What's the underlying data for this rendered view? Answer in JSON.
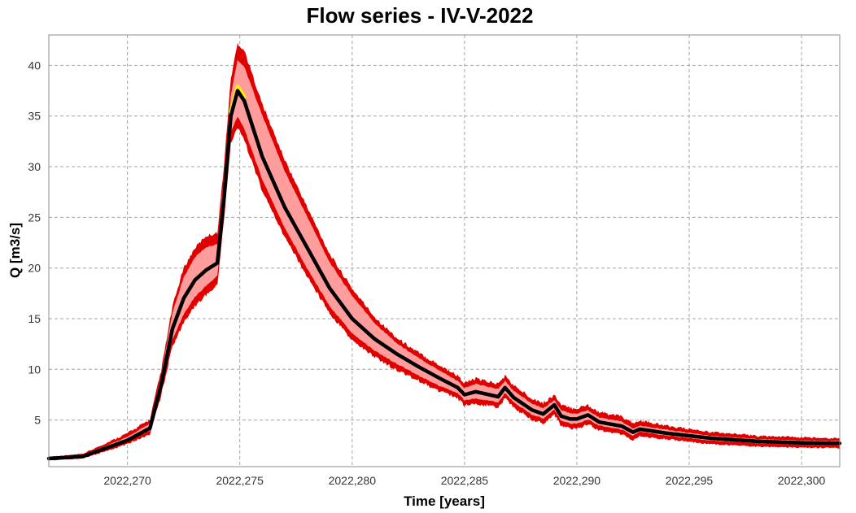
{
  "chart_data": {
    "type": "line",
    "title": "Flow series - IV-V-2022",
    "xlabel": "Time [years]",
    "ylabel": "Q [m3/s]",
    "xlim": [
      2022.2665,
      2022.3017
    ],
    "ylim": [
      0.4,
      43
    ],
    "grid": true,
    "x_ticks": [
      2022.27,
      2022.275,
      2022.28,
      2022.285,
      2022.29,
      2022.295,
      2022.3
    ],
    "x_tick_labels": [
      "2022,270",
      "2022,275",
      "2022,280",
      "2022,285",
      "2022,290",
      "2022,295",
      "2022,300"
    ],
    "y_ticks": [
      5,
      10,
      15,
      20,
      25,
      30,
      35,
      40
    ],
    "y_tick_labels": [
      "5",
      "10",
      "15",
      "20",
      "25",
      "30",
      "35",
      "40"
    ],
    "colors": {
      "outer_band": "#e00000",
      "inner_band": "#ff9c9c",
      "median": "#000000",
      "peak_highlight": "#ffee00"
    },
    "series": [
      {
        "role": "median",
        "x": [
          2022.2665,
          2022.268,
          2022.269,
          2022.27,
          2022.271,
          2022.2715,
          2022.272,
          2022.2725,
          2022.273,
          2022.2735,
          2022.274,
          2022.2743,
          2022.2746,
          2022.2749,
          2022.2752,
          2022.276,
          2022.277,
          2022.278,
          2022.279,
          2022.28,
          2022.281,
          2022.282,
          2022.283,
          2022.284,
          2022.2847,
          2022.285,
          2022.2855,
          2022.2865,
          2022.2868,
          2022.2872,
          2022.288,
          2022.2885,
          2022.289,
          2022.2893,
          2022.2897,
          2022.29,
          2022.2905,
          2022.291,
          2022.292,
          2022.2925,
          2022.2928,
          2022.294,
          2022.296,
          2022.298,
          2022.3,
          2022.3017
        ],
        "y": [
          1.2,
          1.4,
          2.2,
          3.0,
          4.2,
          8.5,
          14.0,
          17.0,
          18.8,
          19.8,
          20.5,
          27.0,
          35.0,
          37.5,
          36.5,
          31.0,
          26.0,
          22.0,
          18.0,
          15.0,
          13.0,
          11.5,
          10.2,
          9.0,
          8.2,
          7.5,
          7.8,
          7.3,
          8.2,
          7.2,
          6.0,
          5.6,
          6.5,
          5.4,
          5.1,
          5.1,
          5.5,
          4.8,
          4.4,
          3.8,
          4.1,
          3.7,
          3.2,
          2.9,
          2.75,
          2.7
        ]
      },
      {
        "role": "inner_band_upper",
        "x": [
          2022.2665,
          2022.268,
          2022.269,
          2022.27,
          2022.271,
          2022.2715,
          2022.272,
          2022.2725,
          2022.273,
          2022.2735,
          2022.274,
          2022.2743,
          2022.2746,
          2022.2749,
          2022.2752,
          2022.276,
          2022.277,
          2022.278,
          2022.279,
          2022.28,
          2022.281,
          2022.282,
          2022.283,
          2022.284,
          2022.2847,
          2022.285,
          2022.2855,
          2022.2865,
          2022.2868,
          2022.2872,
          2022.288,
          2022.2885,
          2022.289,
          2022.2893,
          2022.2897,
          2022.29,
          2022.2905,
          2022.291,
          2022.292,
          2022.2925,
          2022.2928,
          2022.294,
          2022.296,
          2022.298,
          2022.3,
          2022.3017
        ],
        "y": [
          1.25,
          1.5,
          2.4,
          3.3,
          4.6,
          9.3,
          15.5,
          19.0,
          21.0,
          22.0,
          22.3,
          29.0,
          37.0,
          40.5,
          39.8,
          35.0,
          29.5,
          25.0,
          20.5,
          17.2,
          14.5,
          12.5,
          11.0,
          9.7,
          8.8,
          8.1,
          8.5,
          8.0,
          8.8,
          7.8,
          6.6,
          6.1,
          6.9,
          5.9,
          5.6,
          5.6,
          5.9,
          5.2,
          4.8,
          4.1,
          4.4,
          4.0,
          3.4,
          3.1,
          2.95,
          2.9
        ]
      },
      {
        "role": "inner_band_lower",
        "x": [
          2022.2665,
          2022.268,
          2022.269,
          2022.27,
          2022.271,
          2022.2715,
          2022.272,
          2022.2725,
          2022.273,
          2022.2735,
          2022.274,
          2022.2743,
          2022.2746,
          2022.2749,
          2022.2752,
          2022.276,
          2022.277,
          2022.278,
          2022.279,
          2022.28,
          2022.281,
          2022.282,
          2022.283,
          2022.284,
          2022.2847,
          2022.285,
          2022.2855,
          2022.2865,
          2022.2868,
          2022.2872,
          2022.288,
          2022.2885,
          2022.289,
          2022.2893,
          2022.2897,
          2022.29,
          2022.2905,
          2022.291,
          2022.292,
          2022.2925,
          2022.2928,
          2022.294,
          2022.296,
          2022.298,
          2022.3,
          2022.3017
        ],
        "y": [
          1.15,
          1.35,
          2.1,
          2.9,
          4.0,
          8.0,
          13.0,
          15.5,
          17.2,
          18.3,
          19.3,
          26.0,
          33.5,
          35.0,
          33.8,
          28.8,
          24.0,
          20.0,
          16.3,
          13.6,
          11.9,
          10.6,
          9.4,
          8.3,
          7.7,
          7.0,
          7.2,
          6.8,
          7.7,
          6.8,
          5.6,
          5.2,
          6.1,
          5.0,
          4.7,
          4.7,
          5.1,
          4.5,
          4.1,
          3.5,
          3.9,
          3.5,
          3.0,
          2.75,
          2.6,
          2.55
        ]
      },
      {
        "role": "outer_band_upper",
        "x": [
          2022.2665,
          2022.268,
          2022.269,
          2022.27,
          2022.271,
          2022.2715,
          2022.272,
          2022.2725,
          2022.273,
          2022.2735,
          2022.274,
          2022.2743,
          2022.2746,
          2022.2749,
          2022.2752,
          2022.276,
          2022.277,
          2022.278,
          2022.279,
          2022.28,
          2022.281,
          2022.282,
          2022.283,
          2022.284,
          2022.2847,
          2022.285,
          2022.2855,
          2022.2865,
          2022.2868,
          2022.2872,
          2022.288,
          2022.2885,
          2022.289,
          2022.2893,
          2022.2897,
          2022.29,
          2022.2905,
          2022.291,
          2022.292,
          2022.2925,
          2022.2928,
          2022.294,
          2022.296,
          2022.298,
          2022.3,
          2022.3017
        ],
        "y": [
          1.35,
          1.6,
          2.6,
          3.6,
          4.9,
          9.7,
          16.0,
          19.8,
          21.8,
          23.0,
          23.3,
          30.0,
          38.5,
          42.0,
          41.3,
          36.0,
          30.5,
          25.8,
          21.2,
          17.8,
          15.0,
          12.9,
          11.4,
          10.1,
          9.2,
          8.5,
          8.9,
          8.4,
          9.2,
          8.2,
          7.0,
          6.5,
          7.3,
          6.3,
          6.0,
          6.0,
          6.3,
          5.6,
          5.2,
          4.5,
          4.8,
          4.3,
          3.7,
          3.35,
          3.2,
          3.1
        ]
      },
      {
        "role": "outer_band_lower",
        "x": [
          2022.2665,
          2022.268,
          2022.269,
          2022.27,
          2022.271,
          2022.2715,
          2022.272,
          2022.2725,
          2022.273,
          2022.2735,
          2022.274,
          2022.2743,
          2022.2746,
          2022.2749,
          2022.2752,
          2022.276,
          2022.277,
          2022.278,
          2022.279,
          2022.28,
          2022.281,
          2022.282,
          2022.283,
          2022.284,
          2022.2847,
          2022.285,
          2022.2855,
          2022.2865,
          2022.2868,
          2022.2872,
          2022.288,
          2022.2885,
          2022.289,
          2022.2893,
          2022.2897,
          2022.29,
          2022.2905,
          2022.291,
          2022.292,
          2022.2925,
          2022.2928,
          2022.294,
          2022.296,
          2022.298,
          2022.3,
          2022.3017
        ],
        "y": [
          1.05,
          1.25,
          1.95,
          2.7,
          3.7,
          7.6,
          12.4,
          14.8,
          16.4,
          17.5,
          18.5,
          25.0,
          32.5,
          34.0,
          32.8,
          27.8,
          23.2,
          19.3,
          15.7,
          13.0,
          11.4,
          10.1,
          9.0,
          7.9,
          7.3,
          6.6,
          6.8,
          6.4,
          7.3,
          6.4,
          5.2,
          4.8,
          5.7,
          4.6,
          4.3,
          4.3,
          4.7,
          4.1,
          3.7,
          3.1,
          3.5,
          3.2,
          2.7,
          2.45,
          2.35,
          2.3
        ]
      }
    ]
  }
}
